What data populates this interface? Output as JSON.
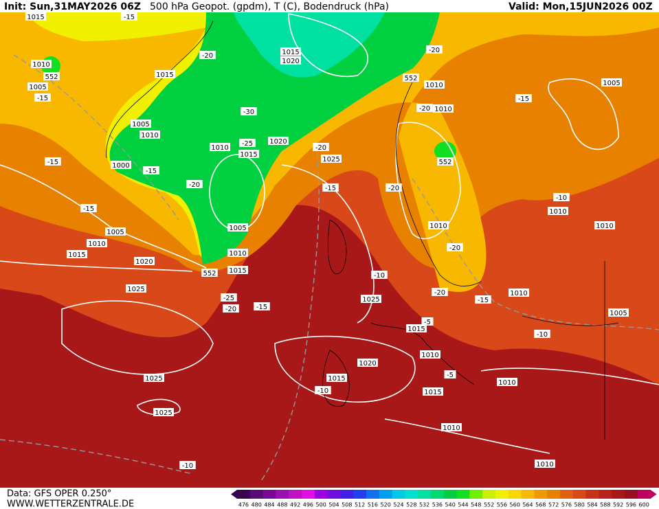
{
  "header": {
    "init": "Init: Sun,31MAY2026 06Z",
    "title": "500 hPa Geopot. (gpdm), T (C), Bodendruck (hPa)",
    "valid": "Valid: Mon,15JUN2026 00Z"
  },
  "map": {
    "contour_labels": [
      "1015",
      "-15",
      "1010",
      "552",
      "1015",
      "1005",
      "-15",
      "-20",
      "1015",
      "1020",
      "552",
      "-20",
      "1010",
      "-15",
      "1005",
      "-20",
      "1010",
      "-30",
      "1005",
      "1010",
      "-25",
      "1010",
      "1020",
      "1015",
      "-20",
      "1025",
      "552",
      "-15",
      "1000",
      "-15",
      "-20",
      "-15",
      "-20",
      "-10",
      "1010",
      "-15",
      "1005",
      "1005",
      "1010",
      "1010",
      "1010",
      "-20",
      "1015",
      "1010",
      "1020",
      "552",
      "1015",
      "-10",
      "1025",
      "-25",
      "-15",
      "-20",
      "1025",
      "-20",
      "-15",
      "1010",
      "1005",
      "-5",
      "1015",
      "-10",
      "1010",
      "1020",
      "1025",
      "1015",
      "-5",
      "1010",
      "-10",
      "1015",
      "1025",
      "1010",
      "-10",
      "1010"
    ]
  },
  "footer": {
    "data": "Data: GFS OPER 0.250°",
    "site": "WWW.WETTERZENTRALE.DE"
  },
  "colorbar": {
    "values": [
      476,
      480,
      484,
      488,
      492,
      496,
      500,
      504,
      508,
      512,
      516,
      520,
      524,
      528,
      532,
      536,
      540,
      544,
      548,
      552,
      556,
      560,
      564,
      568,
      572,
      576,
      580,
      584,
      588,
      592,
      596,
      600
    ],
    "colors": [
      "#3a0050",
      "#5a0a78",
      "#7a0a96",
      "#9a10b0",
      "#c010c8",
      "#e010e0",
      "#a000e0",
      "#7010e0",
      "#4020e8",
      "#2040f0",
      "#1070f0",
      "#00a0f0",
      "#00c8e8",
      "#00e0d0",
      "#00e0a0",
      "#00d870",
      "#00d040",
      "#10e020",
      "#70f000",
      "#c8f000",
      "#f0f000",
      "#f8d800",
      "#f8b800",
      "#f09800",
      "#e88000",
      "#e06010",
      "#d84818",
      "#c83018",
      "#b82018",
      "#a81818",
      "#981020",
      "#c00060"
    ]
  }
}
